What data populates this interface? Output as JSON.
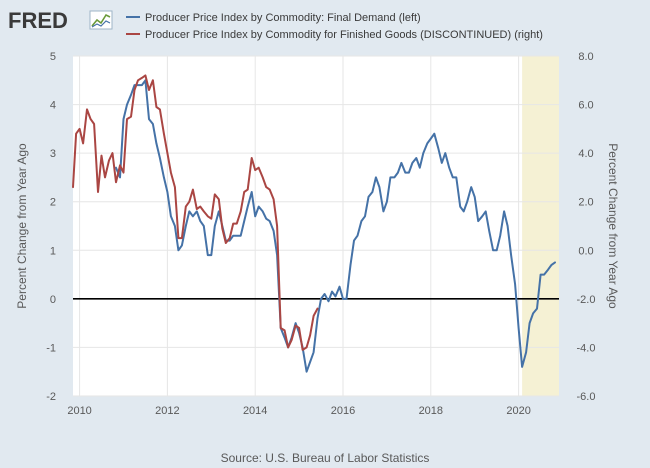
{
  "brand": {
    "name": "FRED",
    "logo_icon": "fred-chart-icon"
  },
  "chart_data": {
    "type": "line",
    "source": "Source: U.S. Bureau of Labor Statistics",
    "ylabel_left": "Percent Change from Year Ago",
    "ylabel_right": "Percent Change from Year Ago",
    "xlim": [
      2009.85,
      2020.92
    ],
    "ylim_left": [
      -2,
      5
    ],
    "ylim_right": [
      -6,
      8
    ],
    "x_ticks": [
      2010,
      2012,
      2014,
      2016,
      2018,
      2020
    ],
    "x_tick_labels": [
      "2010",
      "2012",
      "2014",
      "2016",
      "2018",
      "2020"
    ],
    "y_left_ticks": [
      -2,
      -1,
      0,
      1,
      2,
      3,
      4,
      5
    ],
    "y_left_tick_labels": [
      "-2",
      "-1",
      "0",
      "1",
      "2",
      "3",
      "4",
      "5"
    ],
    "y_right_ticks": [
      -6,
      -4,
      -2,
      0,
      2,
      4,
      6,
      8
    ],
    "y_right_tick_labels": [
      "-6.0",
      "-4.0",
      "-2.0",
      "0.0",
      "2.0",
      "4.0",
      "6.0",
      "8.0"
    ],
    "zero_line_left": 0,
    "recession": {
      "start": 2020.08,
      "end": 2020.92
    },
    "series": [
      {
        "name": "Producer Price Index by Commodity: Final Demand (left)",
        "axis": "left",
        "color": "#4572a7",
        "points": [
          [
            2010.83,
            2.7
          ],
          [
            2010.92,
            2.5
          ],
          [
            2011.0,
            3.7
          ],
          [
            2011.08,
            4.0
          ],
          [
            2011.17,
            4.2
          ],
          [
            2011.25,
            4.4
          ],
          [
            2011.33,
            4.4
          ],
          [
            2011.42,
            4.4
          ],
          [
            2011.5,
            4.5
          ],
          [
            2011.58,
            3.7
          ],
          [
            2011.67,
            3.6
          ],
          [
            2011.75,
            3.2
          ],
          [
            2011.83,
            2.9
          ],
          [
            2011.92,
            2.5
          ],
          [
            2012.0,
            2.2
          ],
          [
            2012.08,
            1.7
          ],
          [
            2012.17,
            1.5
          ],
          [
            2012.25,
            1.0
          ],
          [
            2012.33,
            1.1
          ],
          [
            2012.42,
            1.5
          ],
          [
            2012.5,
            1.8
          ],
          [
            2012.58,
            1.7
          ],
          [
            2012.67,
            1.8
          ],
          [
            2012.75,
            1.6
          ],
          [
            2012.83,
            1.5
          ],
          [
            2012.92,
            0.9
          ],
          [
            2013.0,
            0.9
          ],
          [
            2013.08,
            1.5
          ],
          [
            2013.17,
            1.8
          ],
          [
            2013.25,
            1.5
          ],
          [
            2013.33,
            1.2
          ],
          [
            2013.42,
            1.2
          ],
          [
            2013.5,
            1.3
          ],
          [
            2013.58,
            1.3
          ],
          [
            2013.67,
            1.3
          ],
          [
            2013.75,
            1.6
          ],
          [
            2013.83,
            1.9
          ],
          [
            2013.92,
            2.2
          ],
          [
            2014.0,
            1.7
          ],
          [
            2014.08,
            1.9
          ],
          [
            2014.17,
            1.8
          ],
          [
            2014.25,
            1.65
          ],
          [
            2014.33,
            1.6
          ],
          [
            2014.42,
            1.4
          ],
          [
            2014.5,
            0.9
          ],
          [
            2014.58,
            -0.6
          ],
          [
            2014.67,
            -0.8
          ],
          [
            2014.75,
            -1.0
          ],
          [
            2014.83,
            -0.8
          ],
          [
            2014.92,
            -0.5
          ],
          [
            2015.0,
            -0.7
          ],
          [
            2015.08,
            -1.0
          ],
          [
            2015.17,
            -1.5
          ],
          [
            2015.25,
            -1.3
          ],
          [
            2015.33,
            -1.1
          ],
          [
            2015.42,
            -0.4
          ],
          [
            2015.5,
            0.0
          ],
          [
            2015.58,
            0.1
          ],
          [
            2015.67,
            -0.05
          ],
          [
            2015.75,
            0.15
          ],
          [
            2015.83,
            0.05
          ],
          [
            2015.92,
            0.25
          ],
          [
            2016.0,
            0.0
          ],
          [
            2016.08,
            0.0
          ],
          [
            2016.17,
            0.7
          ],
          [
            2016.25,
            1.2
          ],
          [
            2016.33,
            1.3
          ],
          [
            2016.42,
            1.6
          ],
          [
            2016.5,
            1.7
          ],
          [
            2016.58,
            2.1
          ],
          [
            2016.67,
            2.2
          ],
          [
            2016.75,
            2.5
          ],
          [
            2016.83,
            2.3
          ],
          [
            2016.92,
            1.8
          ],
          [
            2017.0,
            2.0
          ],
          [
            2017.08,
            2.5
          ],
          [
            2017.17,
            2.5
          ],
          [
            2017.25,
            2.6
          ],
          [
            2017.33,
            2.8
          ],
          [
            2017.42,
            2.6
          ],
          [
            2017.5,
            2.6
          ],
          [
            2017.58,
            2.8
          ],
          [
            2017.67,
            2.9
          ],
          [
            2017.75,
            2.7
          ],
          [
            2017.83,
            3.0
          ],
          [
            2017.92,
            3.2
          ],
          [
            2018.0,
            3.3
          ],
          [
            2018.08,
            3.4
          ],
          [
            2018.17,
            3.1
          ],
          [
            2018.25,
            2.8
          ],
          [
            2018.33,
            3.0
          ],
          [
            2018.42,
            2.7
          ],
          [
            2018.5,
            2.5
          ],
          [
            2018.58,
            2.5
          ],
          [
            2018.67,
            1.9
          ],
          [
            2018.75,
            1.8
          ],
          [
            2018.83,
            2.0
          ],
          [
            2018.92,
            2.3
          ],
          [
            2019.0,
            2.1
          ],
          [
            2019.08,
            1.6
          ],
          [
            2019.17,
            1.7
          ],
          [
            2019.25,
            1.8
          ],
          [
            2019.33,
            1.4
          ],
          [
            2019.42,
            1.0
          ],
          [
            2019.5,
            1.0
          ],
          [
            2019.58,
            1.3
          ],
          [
            2019.67,
            1.8
          ],
          [
            2019.75,
            1.5
          ],
          [
            2019.83,
            0.9
          ],
          [
            2019.92,
            0.3
          ],
          [
            2020.0,
            -0.6
          ],
          [
            2020.08,
            -1.4
          ],
          [
            2020.17,
            -1.1
          ],
          [
            2020.25,
            -0.5
          ],
          [
            2020.33,
            -0.3
          ],
          [
            2020.42,
            -0.2
          ],
          [
            2020.5,
            0.5
          ],
          [
            2020.58,
            0.5
          ],
          [
            2020.67,
            0.6
          ],
          [
            2020.75,
            0.7
          ],
          [
            2020.83,
            0.75
          ]
        ]
      },
      {
        "name": "Producer Price Index by Commodity for Finished Goods (DISCONTINUED) (right)",
        "axis": "right",
        "color": "#aa4643",
        "points": [
          [
            2009.85,
            2.6
          ],
          [
            2009.92,
            4.8
          ],
          [
            2010.0,
            5.0
          ],
          [
            2010.08,
            4.4
          ],
          [
            2010.17,
            5.8
          ],
          [
            2010.25,
            5.4
          ],
          [
            2010.33,
            5.2
          ],
          [
            2010.42,
            2.4
          ],
          [
            2010.5,
            3.9
          ],
          [
            2010.58,
            3.0
          ],
          [
            2010.67,
            3.7
          ],
          [
            2010.75,
            4.0
          ],
          [
            2010.83,
            2.8
          ],
          [
            2010.92,
            3.5
          ],
          [
            2011.0,
            3.2
          ],
          [
            2011.08,
            5.4
          ],
          [
            2011.17,
            5.5
          ],
          [
            2011.25,
            6.6
          ],
          [
            2011.33,
            7.0
          ],
          [
            2011.42,
            7.1
          ],
          [
            2011.5,
            7.2
          ],
          [
            2011.58,
            6.6
          ],
          [
            2011.67,
            7.0
          ],
          [
            2011.75,
            5.9
          ],
          [
            2011.83,
            5.8
          ],
          [
            2011.92,
            4.8
          ],
          [
            2012.0,
            4.0
          ],
          [
            2012.08,
            3.2
          ],
          [
            2012.17,
            2.6
          ],
          [
            2012.25,
            0.5
          ],
          [
            2012.33,
            0.5
          ],
          [
            2012.42,
            1.8
          ],
          [
            2012.5,
            2.0
          ],
          [
            2012.58,
            2.5
          ],
          [
            2012.67,
            1.7
          ],
          [
            2012.75,
            1.8
          ],
          [
            2012.83,
            1.6
          ],
          [
            2012.92,
            1.4
          ],
          [
            2013.0,
            1.3
          ],
          [
            2013.08,
            2.3
          ],
          [
            2013.17,
            2.1
          ],
          [
            2013.25,
            0.9
          ],
          [
            2013.33,
            0.3
          ],
          [
            2013.42,
            0.5
          ],
          [
            2013.5,
            1.1
          ],
          [
            2013.58,
            1.1
          ],
          [
            2013.67,
            1.6
          ],
          [
            2013.75,
            2.4
          ],
          [
            2013.83,
            2.5
          ],
          [
            2013.92,
            3.8
          ],
          [
            2014.0,
            3.3
          ],
          [
            2014.08,
            3.4
          ],
          [
            2014.17,
            3.0
          ],
          [
            2014.25,
            2.6
          ],
          [
            2014.33,
            2.5
          ],
          [
            2014.42,
            2.1
          ],
          [
            2014.5,
            1.0
          ],
          [
            2014.58,
            -3.2
          ],
          [
            2014.67,
            -3.3
          ],
          [
            2014.75,
            -4.0
          ],
          [
            2014.83,
            -3.7
          ],
          [
            2014.92,
            -3.1
          ],
          [
            2015.0,
            -3.2
          ],
          [
            2015.08,
            -4.1
          ],
          [
            2015.17,
            -4.0
          ],
          [
            2015.25,
            -3.5
          ],
          [
            2015.33,
            -2.7
          ],
          [
            2015.42,
            -2.4
          ]
        ]
      }
    ]
  }
}
